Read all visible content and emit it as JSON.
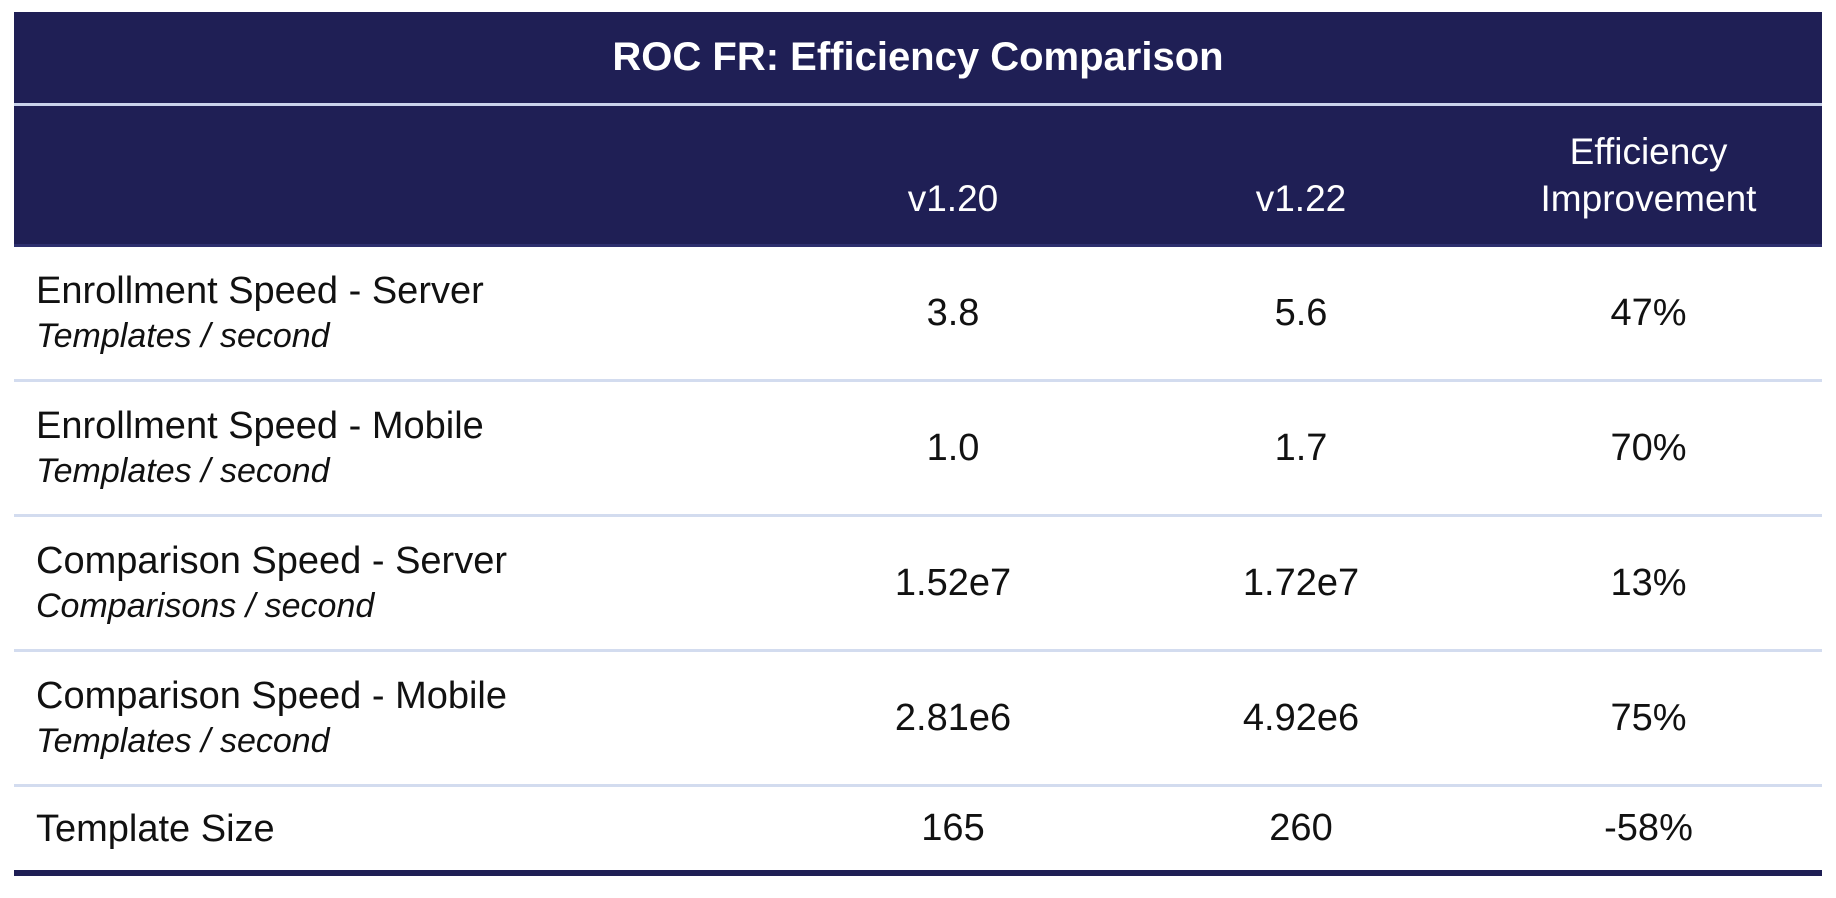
{
  "table": {
    "title": "ROC FR: Efficiency Comparison",
    "headers": [
      "",
      "v1.20",
      "v1.22",
      "Efficiency\nImprovement"
    ],
    "rows": [
      {
        "label": "Enrollment Speed - Server",
        "unit": "Templates / second",
        "v120": "3.8",
        "v122": "5.6",
        "improvement": "47%"
      },
      {
        "label": "Enrollment Speed - Mobile",
        "unit": "Templates / second",
        "v120": "1.0",
        "v122": "1.7",
        "improvement": "70%"
      },
      {
        "label": "Comparison Speed - Server",
        "unit": "Comparisons / second",
        "v120": "1.52e7",
        "v122": "1.72e7",
        "improvement": "13%"
      },
      {
        "label": "Comparison Speed - Mobile",
        "unit": "Templates / second",
        "v120": "2.81e6",
        "v122": "4.92e6",
        "improvement": "75%"
      },
      {
        "label": "Template Size",
        "unit": "",
        "v120": "165",
        "v122": "260",
        "improvement": "-58%"
      }
    ]
  },
  "colors": {
    "header_bg": "#1f1f55",
    "row_divider": "#d3dcef"
  }
}
